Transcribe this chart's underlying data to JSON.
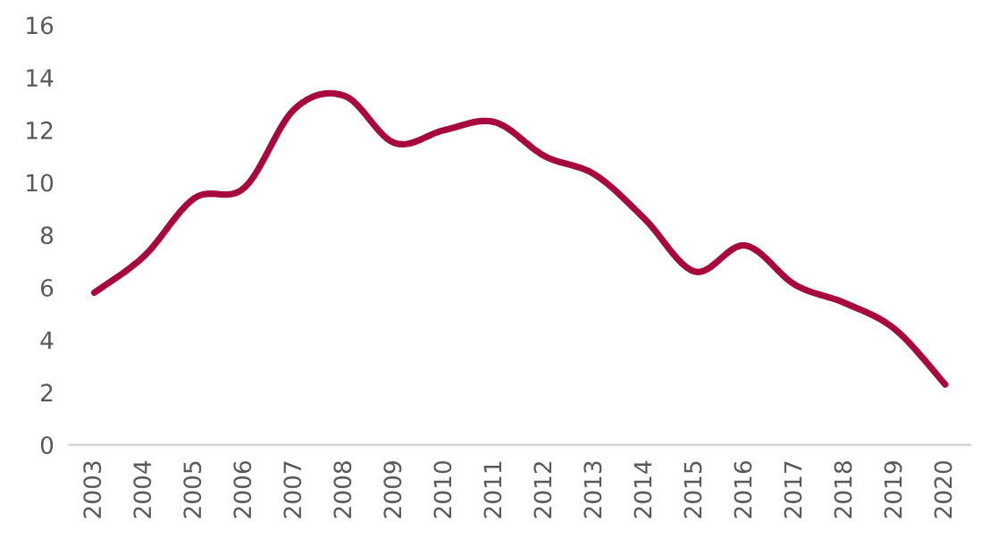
{
  "chart_data": {
    "type": "line",
    "categories": [
      "2003",
      "2004",
      "2005",
      "2006",
      "2007",
      "2008",
      "2009",
      "2010",
      "2011",
      "2012",
      "2013",
      "2014",
      "2015",
      "2016",
      "2017",
      "2018",
      "2019",
      "2020"
    ],
    "series": [
      {
        "color": "#a8093c",
        "values": [
          5.8,
          7.2,
          9.4,
          9.8,
          12.8,
          13.3,
          11.5,
          12.0,
          12.3,
          11.0,
          10.3,
          8.6,
          6.6,
          7.6,
          6.1,
          5.4,
          4.4,
          2.3
        ]
      }
    ],
    "ylim": [
      0,
      16
    ],
    "yticks": [
      0,
      2,
      4,
      6,
      8,
      10,
      12,
      14,
      16
    ],
    "grid": false,
    "legend": false,
    "marker": "none",
    "line_style": "solid"
  }
}
